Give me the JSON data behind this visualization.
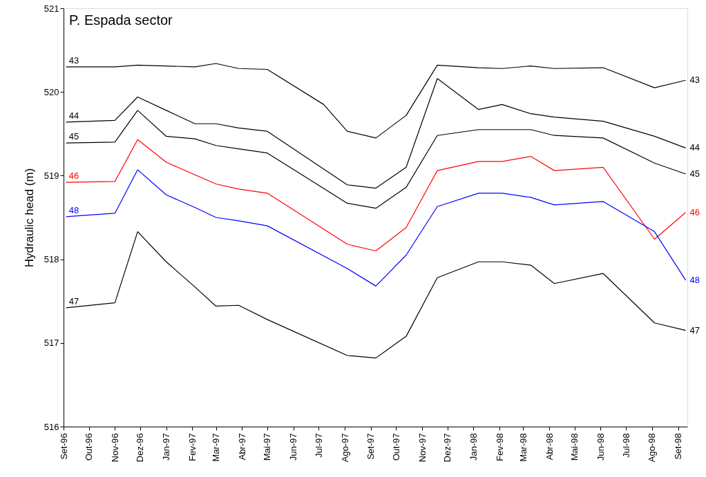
{
  "chart_data": {
    "type": "line",
    "title": "P. Espada sector",
    "ylabel": "Hydraulic head (m)",
    "x": [
      "1996-09-04",
      "1996-11-01",
      "1996-11-28",
      "1997-01-01",
      "1997-02-04",
      "1997-03-01",
      "1997-03-28",
      "1997-05-01",
      "1997-08-04",
      "1997-09-07",
      "1997-10-13",
      "1997-11-19",
      "1998-01-07",
      "1998-02-04",
      "1998-03-10",
      "1998-04-07",
      "1998-06-04",
      "1998-08-04",
      "1998-09-10"
    ],
    "series": [
      {
        "name": "43",
        "color": "#000000",
        "x": [
          "1996-09-04",
          "1996-11-01",
          "1996-11-28",
          "1997-01-01",
          "1997-02-04",
          "1997-03-01",
          "1997-03-28",
          "1997-05-01",
          "1997-07-07",
          "1997-08-04",
          "1997-09-07",
          "1997-10-13",
          "1997-11-19",
          "1998-01-07",
          "1998-02-04",
          "1998-03-10",
          "1998-04-07",
          "1998-06-04",
          "1998-08-04",
          "1998-09-10"
        ],
        "values": [
          520.3,
          520.3,
          520.32,
          520.31,
          520.3,
          520.34,
          520.28,
          520.27,
          519.85,
          519.53,
          519.45,
          519.72,
          520.32,
          520.29,
          520.28,
          520.31,
          520.28,
          520.29,
          520.05,
          520.14
        ]
      },
      {
        "name": "44",
        "color": "#000000",
        "values": [
          519.64,
          519.66,
          519.94,
          519.78,
          519.62,
          519.62,
          519.57,
          519.53,
          518.89,
          518.85,
          519.1,
          520.16,
          519.79,
          519.85,
          519.74,
          519.7,
          519.65,
          519.47,
          519.33
        ]
      },
      {
        "name": "45",
        "color": "#000000",
        "values": [
          519.39,
          519.4,
          519.78,
          519.47,
          519.44,
          519.36,
          519.32,
          519.27,
          518.67,
          518.61,
          518.86,
          519.48,
          519.55,
          519.55,
          519.55,
          519.48,
          519.45,
          519.15,
          519.02
        ]
      },
      {
        "name": "46",
        "color": "#ff0000",
        "values": [
          518.92,
          518.93,
          519.43,
          519.16,
          519.01,
          518.9,
          518.84,
          518.79,
          518.18,
          518.1,
          518.38,
          519.06,
          519.17,
          519.17,
          519.23,
          519.06,
          519.1,
          518.24,
          518.56
        ]
      },
      {
        "name": "48",
        "color": "#0000ff",
        "values": [
          518.51,
          518.55,
          519.07,
          518.77,
          518.62,
          518.5,
          518.46,
          518.4,
          517.89,
          517.68,
          518.05,
          518.63,
          518.79,
          518.79,
          518.74,
          518.65,
          518.69,
          518.33,
          517.75
        ]
      },
      {
        "name": "47",
        "color": "#000000",
        "values": [
          517.42,
          517.48,
          518.33,
          517.97,
          517.67,
          517.44,
          517.45,
          517.28,
          516.85,
          516.82,
          517.08,
          517.78,
          517.97,
          517.97,
          517.93,
          517.71,
          517.83,
          517.24,
          517.15
        ]
      }
    ],
    "xlim": [
      "1996-09-01",
      "1998-09-12"
    ],
    "xticks": [
      {
        "value": "1996-09",
        "label": "Set-96"
      },
      {
        "value": "1996-10",
        "label": "Out-96"
      },
      {
        "value": "1996-11",
        "label": "Nov-96"
      },
      {
        "value": "1996-12",
        "label": "Dez-96"
      },
      {
        "value": "1997-01",
        "label": "Jan-97"
      },
      {
        "value": "1997-02",
        "label": "Fev-97"
      },
      {
        "value": "1997-03",
        "label": "Mar-97"
      },
      {
        "value": "1997-04",
        "label": "Abr-97"
      },
      {
        "value": "1997-05",
        "label": "Mai-97"
      },
      {
        "value": "1997-06",
        "label": "Jun-97"
      },
      {
        "value": "1997-07",
        "label": "Jul-97"
      },
      {
        "value": "1997-08",
        "label": "Ago-97"
      },
      {
        "value": "1997-09",
        "label": "Set-97"
      },
      {
        "value": "1997-10",
        "label": "Out-97"
      },
      {
        "value": "1997-11",
        "label": "Nov-97"
      },
      {
        "value": "1997-12",
        "label": "Dez-97"
      },
      {
        "value": "1998-01",
        "label": "Jan-98"
      },
      {
        "value": "1998-02",
        "label": "Fev-98"
      },
      {
        "value": "1998-03",
        "label": "Mar-98"
      },
      {
        "value": "1998-04",
        "label": "Abr-98"
      },
      {
        "value": "1998-05",
        "label": "Mai-98"
      },
      {
        "value": "1998-06",
        "label": "Jun-98"
      },
      {
        "value": "1998-07",
        "label": "Jul-98"
      },
      {
        "value": "1998-08",
        "label": "Ago-98"
      },
      {
        "value": "1998-09",
        "label": "Set-98"
      }
    ],
    "ylim": [
      516,
      521
    ],
    "yticks": [
      516,
      517,
      518,
      519,
      520,
      521
    ],
    "grid": false,
    "legend": false,
    "marker": "none",
    "line_style": "solid"
  }
}
